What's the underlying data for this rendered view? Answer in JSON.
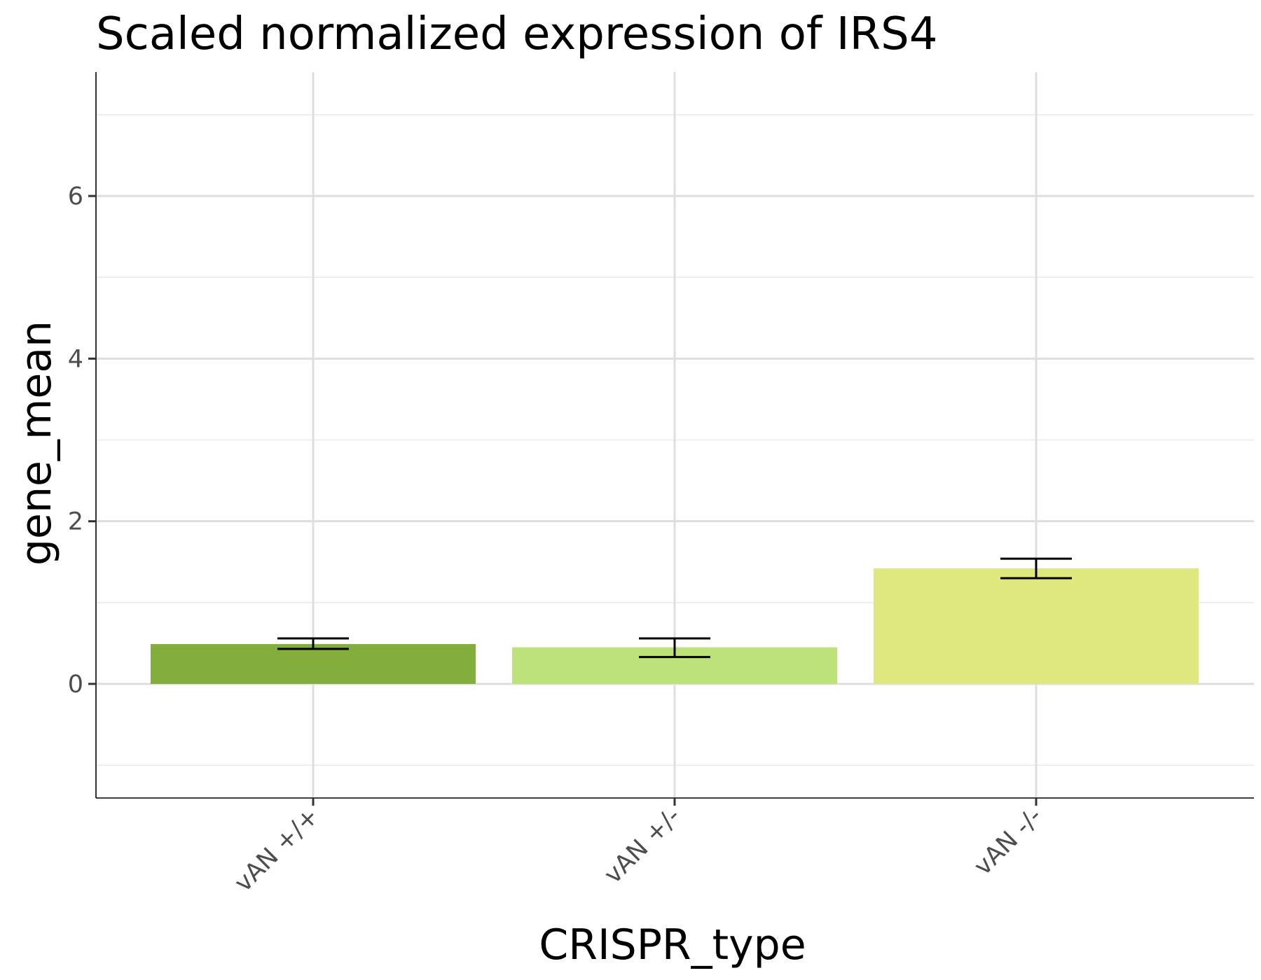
{
  "chart_data": {
    "type": "bar",
    "title": "Scaled normalized expression of IRS4",
    "xlabel": "CRISPR_type",
    "ylabel": "gene_mean",
    "categories": [
      "vAN +/+",
      "vAN +/-",
      "vAN -/-"
    ],
    "values": [
      0.49,
      0.45,
      1.42
    ],
    "error_low": [
      0.43,
      0.33,
      1.3
    ],
    "error_high": [
      0.56,
      0.56,
      1.54
    ],
    "bar_colors": [
      "#83ae3c",
      "#bde27a",
      "#dfe87f"
    ],
    "ylim": [
      -1.4,
      7.5
    ],
    "yticks": [
      0,
      2,
      4,
      6
    ],
    "y_minor_gridlines": [
      -1,
      1,
      3,
      5,
      7
    ],
    "grid": true,
    "legend": "none",
    "x_tick_rotation_deg": -45
  }
}
